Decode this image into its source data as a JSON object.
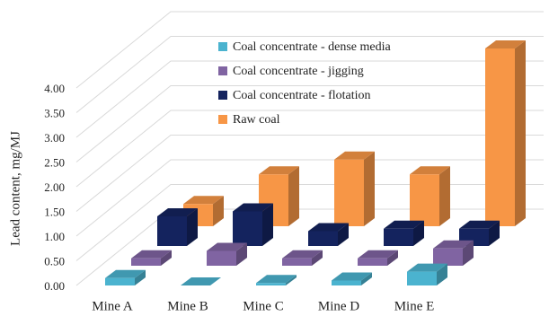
{
  "chart_data": {
    "type": "bar3d",
    "y_label": "Lead content, mg/MJ",
    "categories": [
      "Mine A",
      "Mine B",
      "Mine C",
      "Mine D",
      "Mine E"
    ],
    "series": [
      {
        "name": "Coal concentrate - dense media",
        "color": "#4bb3cf",
        "values": [
          0.15,
          0,
          0.05,
          0.1,
          0.28
        ]
      },
      {
        "name": "Coal concentrate - jigging",
        "color": "#8064a2",
        "values": [
          0.15,
          0.3,
          0.15,
          0.15,
          0.35
        ]
      },
      {
        "name": "Coal concentrate - flotation",
        "color": "#14235e",
        "values": [
          0.6,
          0.7,
          0.3,
          0.35,
          0.35
        ]
      },
      {
        "name": "Raw coal",
        "color": "#f79646",
        "values": [
          0.45,
          1.05,
          1.35,
          1.05,
          3.6
        ]
      }
    ],
    "ylim": [
      0,
      4
    ],
    "yticks": [
      {
        "value": 0,
        "label": "0.00"
      },
      {
        "value": 0.5,
        "label": "0.50"
      },
      {
        "value": 1,
        "label": "1.00"
      },
      {
        "value": 1.5,
        "label": "1.50"
      },
      {
        "value": 2,
        "label": "2.00"
      },
      {
        "value": 2.5,
        "label": "2.50"
      },
      {
        "value": 3,
        "label": "3.00"
      },
      {
        "value": 3.5,
        "label": "3.50"
      },
      {
        "value": 4,
        "label": "4.00"
      }
    ],
    "grid": true
  }
}
